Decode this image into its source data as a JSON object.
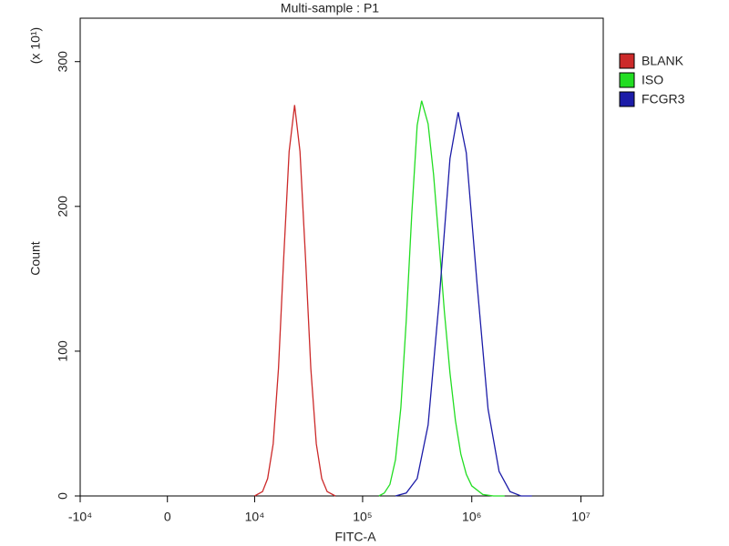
{
  "chart_data": {
    "type": "line",
    "title": "Multi-sample : P1",
    "x_label": "FITC-A",
    "y_label": "Count",
    "y_multiplier": "(x 10¹)",
    "xscale": "biexponential",
    "xlim": [
      -10000,
      16000000
    ],
    "xticks": [
      {
        "value": -10000,
        "label": "-10⁴"
      },
      0,
      {
        "value": 10000,
        "label": "10⁴"
      },
      {
        "value": 100000,
        "label": "10⁵"
      },
      {
        "value": 1000000,
        "label": "10⁶"
      },
      {
        "value": 10000000,
        "label": "10⁷"
      }
    ],
    "ylim": [
      0,
      330
    ],
    "yticks": [
      0,
      100,
      200,
      300
    ],
    "legend": "right",
    "series": [
      {
        "name": "BLANK",
        "color": "#cc2a2a",
        "x": [
          10000,
          11900,
          13300,
          15000,
          16800,
          18800,
          21100,
          23700,
          26600,
          29900,
          33500,
          37600,
          42200,
          47300,
          56200
        ],
        "values": [
          0,
          3,
          12,
          36,
          88,
          164,
          238,
          270,
          238,
          164,
          88,
          36,
          12,
          3,
          0
        ]
      },
      {
        "name": "ISO",
        "color": "#22dd22",
        "x": [
          141000,
          158000,
          178000,
          200000,
          224000,
          251000,
          282000,
          316000,
          347000,
          398000,
          447000,
          501000,
          562000,
          631000,
          708000,
          794000,
          891000,
          1000000,
          1260000,
          1580000,
          2000000
        ],
        "values": [
          0,
          2,
          8,
          25,
          61,
          121,
          195,
          256,
          273,
          257,
          222,
          175,
          127,
          85,
          52,
          29,
          15,
          7,
          1,
          0,
          0
        ]
      },
      {
        "name": "FCGR3",
        "color": "#1c1ca8",
        "x": [
          200000,
          251000,
          316000,
          398000,
          501000,
          631000,
          750000,
          891000,
          1120000,
          1410000,
          1780000,
          2240000,
          2820000,
          3550000
        ],
        "values": [
          0,
          2,
          12,
          49,
          134,
          233,
          265,
          237,
          146,
          60,
          17,
          3,
          0,
          0
        ]
      }
    ]
  }
}
